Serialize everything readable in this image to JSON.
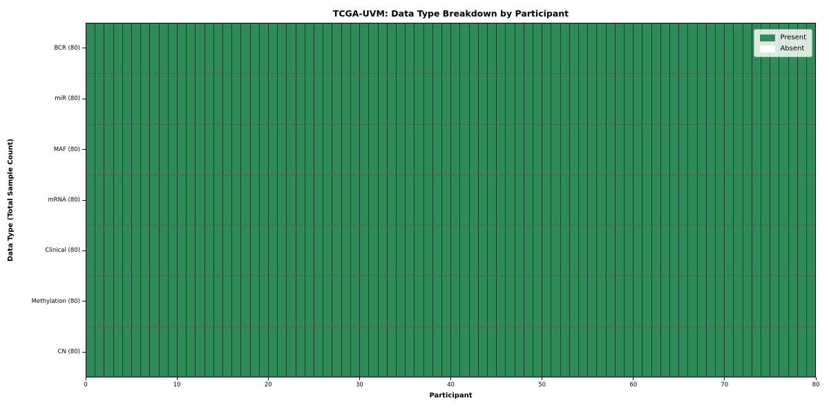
{
  "chart_data": {
    "type": "heatmap",
    "title": "TCGA-UVM: Data Type Breakdown by Participant",
    "xlabel": "Participant",
    "ylabel": "Data Type (Total Sample Count)",
    "rows": [
      "BCR (80)",
      "miR (80)",
      "MAF (80)",
      "mRNA (80)",
      "Clinical (80)",
      "Methylation (80)",
      "CN (80)"
    ],
    "n_participants": 80,
    "x_range": [
      0,
      80
    ],
    "x_ticks": [
      0,
      10,
      20,
      30,
      40,
      50,
      60,
      70,
      80
    ],
    "series": [
      {
        "name": "BCR (80)",
        "present": 80,
        "absent": 0
      },
      {
        "name": "miR (80)",
        "present": 80,
        "absent": 0
      },
      {
        "name": "MAF (80)",
        "present": 80,
        "absent": 0
      },
      {
        "name": "mRNA (80)",
        "present": 80,
        "absent": 0
      },
      {
        "name": "Clinical (80)",
        "present": 80,
        "absent": 0
      },
      {
        "name": "Methylation (80)",
        "present": 80,
        "absent": 0
      },
      {
        "name": "CN (80)",
        "present": 80,
        "absent": 0
      }
    ],
    "legend": [
      {
        "label": "Present",
        "color": "#2e8b57"
      },
      {
        "label": "Absent",
        "color": "#ffffff"
      }
    ],
    "legend_position": "top-right",
    "grid": true,
    "colors": {
      "present": "#2e8b57",
      "absent": "#ffffff",
      "cell_edge": "rgba(0,0,0,0.55)",
      "axis": "#000000"
    }
  }
}
